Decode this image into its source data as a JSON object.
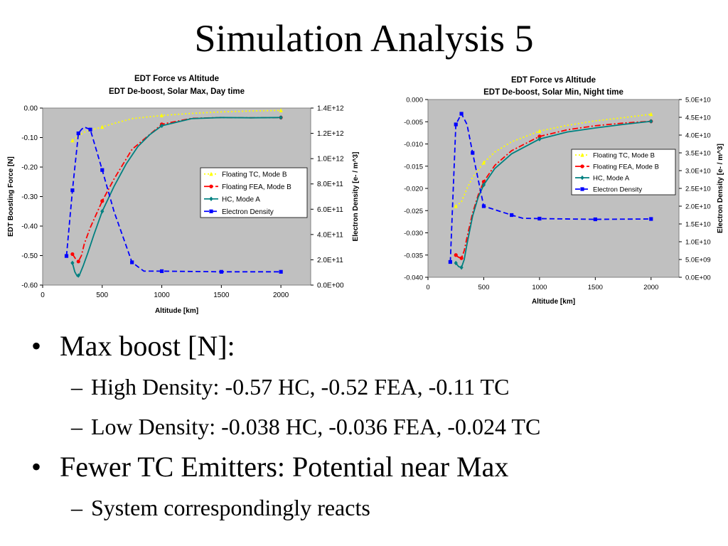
{
  "slide": {
    "title": "Simulation Analysis 5"
  },
  "bullets": [
    {
      "text": "Max boost [N]:",
      "children": [
        "High Density: -0.57 HC, -0.52 FEA, -0.11 TC",
        "Low Density: -0.038 HC, -0.036 FEA, -0.024 TC"
      ]
    },
    {
      "text": "Fewer TC Emitters: Potential near Max",
      "children": [
        "System correspondingly reacts"
      ]
    }
  ],
  "colors": {
    "plot_background": "#c0c0c0",
    "tc": "#ffff00",
    "fea": "#ff0000",
    "hc": "#008080",
    "density": "#0000ff"
  },
  "chart_data": [
    {
      "type": "line",
      "title": "EDT Force vs Altitude",
      "subtitle": "EDT De-boost, Solar Max, Day time",
      "xlabel": "Altitude [km]",
      "ylabel": "EDT Boosting Force [N]",
      "y2label": "Electron Density [e- / m^3]",
      "xlim": [
        0,
        2250
      ],
      "ylim": [
        -0.6,
        0
      ],
      "y2lim": [
        0,
        1400000000000.0
      ],
      "xticks": [
        0,
        500,
        1000,
        1500,
        2000
      ],
      "xtick_labels": [
        "0",
        "500",
        "1000",
        "1500",
        "2000"
      ],
      "yticks": [
        0,
        -0.1,
        -0.2,
        -0.3,
        -0.4,
        -0.5,
        -0.6
      ],
      "ytick_labels": [
        "0.00",
        "-0.10",
        "-0.20",
        "-0.30",
        "-0.40",
        "-0.50",
        "-0.60"
      ],
      "y2ticks": [
        1400000000000.0,
        1200000000000.0,
        1000000000000.0,
        800000000000.0,
        600000000000.0,
        400000000000.0,
        200000000000.0,
        0
      ],
      "y2tick_labels": [
        "1.4E+12",
        "1.2E+12",
        "1.0E+12",
        "8.0E+11",
        "6.0E+11",
        "4.0E+11",
        "2.0E+11",
        "0.0E+00"
      ],
      "grid": false,
      "legend_position": "right",
      "series": [
        {
          "name": "Floating TC, Mode B",
          "axis": "left",
          "color": "#ffff00",
          "dash": "2,3",
          "marker": "triangle",
          "x": [
            250,
            300,
            350,
            400,
            500,
            600,
            750,
            1000,
            1250,
            1500,
            1750,
            2000
          ],
          "y": [
            -0.11,
            -0.095,
            -0.082,
            -0.075,
            -0.064,
            -0.052,
            -0.036,
            -0.025,
            -0.018,
            -0.013,
            -0.01,
            -0.008
          ],
          "marker_x": [
            250,
            500,
            1000,
            2000
          ]
        },
        {
          "name": "Floating FEA, Mode B",
          "axis": "left",
          "color": "#ff0000",
          "dash": "8,3,2,3",
          "marker": "circle",
          "x": [
            250,
            275,
            300,
            325,
            350,
            400,
            450,
            500,
            600,
            750,
            1000,
            1250,
            1500,
            1750,
            2000
          ],
          "y": [
            -0.495,
            -0.51,
            -0.52,
            -0.5,
            -0.46,
            -0.405,
            -0.36,
            -0.315,
            -0.24,
            -0.14,
            -0.055,
            -0.035,
            -0.032,
            -0.033,
            -0.032
          ],
          "marker_x": [
            250,
            300,
            500,
            1000,
            2000
          ]
        },
        {
          "name": "HC, Mode A",
          "axis": "left",
          "color": "#008080",
          "dash": "",
          "marker": "diamond",
          "x": [
            250,
            270,
            290,
            310,
            340,
            380,
            430,
            500,
            600,
            700,
            800,
            900,
            1000,
            1250,
            1500,
            1750,
            2000
          ],
          "y": [
            -0.525,
            -0.555,
            -0.57,
            -0.565,
            -0.535,
            -0.49,
            -0.43,
            -0.35,
            -0.265,
            -0.19,
            -0.13,
            -0.09,
            -0.06,
            -0.036,
            -0.032,
            -0.033,
            -0.032
          ],
          "marker_x": [
            250,
            300,
            500,
            1000,
            2000
          ]
        },
        {
          "name": "Electron Density",
          "axis": "right",
          "color": "#0000ff",
          "dash": "7,4",
          "marker": "square",
          "x": [
            200,
            250,
            300,
            325,
            350,
            400,
            500,
            600,
            750,
            850,
            1000,
            1500,
            2000
          ],
          "y": [
            230000000000.0,
            750000000000.0,
            1200000000000.0,
            1230000000000.0,
            1250000000000.0,
            1230000000000.0,
            910000000000.0,
            580000000000.0,
            180000000000.0,
            110000000000.0,
            110000000000.0,
            105000000000.0,
            105000000000.0
          ],
          "marker_x": [
            200,
            250,
            300,
            400,
            500,
            750,
            1000,
            1500,
            2000
          ]
        }
      ]
    },
    {
      "type": "line",
      "title": "EDT Force vs Altitude",
      "subtitle": "EDT De-boost, Solar Min, Night time",
      "xlabel": "Altitude [km]",
      "ylabel": "",
      "y2label": "Electron Density [e- / m^3]",
      "xlim": [
        0,
        2250
      ],
      "ylim": [
        -0.04,
        0
      ],
      "y2lim": [
        0,
        50000000000.0
      ],
      "xticks": [
        0,
        500,
        1000,
        1500,
        2000
      ],
      "xtick_labels": [
        "0",
        "500",
        "1000",
        "1500",
        "2000"
      ],
      "yticks": [
        0,
        -0.005,
        -0.01,
        -0.015,
        -0.02,
        -0.025,
        -0.03,
        -0.035,
        -0.04
      ],
      "ytick_labels": [
        "0.000",
        "-0.005",
        "-0.010",
        "-0.015",
        "-0.020",
        "-0.025",
        "-0.030",
        "-0.035",
        "-0.040"
      ],
      "y2ticks": [
        50000000000.0,
        45000000000.0,
        40000000000.0,
        35000000000.0,
        30000000000.0,
        25000000000.0,
        20000000000.0,
        15000000000.0,
        10000000000.0,
        5000000000.0,
        0
      ],
      "y2tick_labels": [
        "5.0E+10",
        "4.5E+10",
        "4.0E+10",
        "3.5E+10",
        "3.0E+10",
        "2.5E+10",
        "2.0E+10",
        "1.5E+10",
        "1.0E+10",
        "5.0E+09",
        "0.0E+00"
      ],
      "grid": false,
      "legend_position": "right",
      "series": [
        {
          "name": "Floating TC, Mode B",
          "axis": "left",
          "color": "#ffff00",
          "dash": "2,3",
          "marker": "triangle",
          "x": [
            250,
            300,
            350,
            400,
            500,
            600,
            750,
            1000,
            1250,
            1500,
            1750,
            2000
          ],
          "y": [
            -0.024,
            -0.023,
            -0.02,
            -0.0175,
            -0.0142,
            -0.0118,
            -0.0095,
            -0.0071,
            -0.0058,
            -0.0048,
            -0.0041,
            -0.0033
          ],
          "marker_x": [
            250,
            500,
            1000,
            2000
          ]
        },
        {
          "name": "Floating FEA, Mode B",
          "axis": "left",
          "color": "#ff0000",
          "dash": "8,3,2,3",
          "marker": "circle",
          "x": [
            250,
            275,
            300,
            325,
            350,
            400,
            450,
            500,
            600,
            750,
            1000,
            1250,
            1500,
            1750,
            2000
          ],
          "y": [
            -0.035,
            -0.0355,
            -0.0357,
            -0.034,
            -0.031,
            -0.0255,
            -0.0215,
            -0.0185,
            -0.0148,
            -0.0115,
            -0.0083,
            -0.0068,
            -0.0059,
            -0.0053,
            -0.0049
          ],
          "marker_x": [
            250,
            300,
            500,
            1000,
            2000
          ]
        },
        {
          "name": "HC, Mode A",
          "axis": "left",
          "color": "#008080",
          "dash": "",
          "marker": "diamond",
          "x": [
            250,
            275,
            300,
            325,
            350,
            400,
            450,
            500,
            600,
            750,
            1000,
            1250,
            1500,
            1750,
            2000
          ],
          "y": [
            -0.0368,
            -0.0376,
            -0.0378,
            -0.036,
            -0.0325,
            -0.0262,
            -0.022,
            -0.0192,
            -0.0155,
            -0.0122,
            -0.0089,
            -0.0073,
            -0.0064,
            -0.0056,
            -0.0049
          ],
          "marker_x": [
            250,
            300,
            500,
            1000,
            2000
          ]
        },
        {
          "name": "Electron Density",
          "axis": "right",
          "color": "#0000ff",
          "dash": "7,4",
          "marker": "square",
          "x": [
            200,
            250,
            300,
            350,
            400,
            500,
            600,
            750,
            850,
            1000,
            1500,
            2000
          ],
          "y": [
            4300000000.0,
            43000000000.0,
            46000000000.0,
            43000000000.0,
            35000000000.0,
            20000000000.0,
            19000000000.0,
            17500000000.0,
            16600000000.0,
            16500000000.0,
            16300000000.0,
            16400000000.0
          ],
          "marker_x": [
            200,
            250,
            300,
            400,
            500,
            750,
            1000,
            1500,
            2000
          ]
        }
      ]
    }
  ]
}
